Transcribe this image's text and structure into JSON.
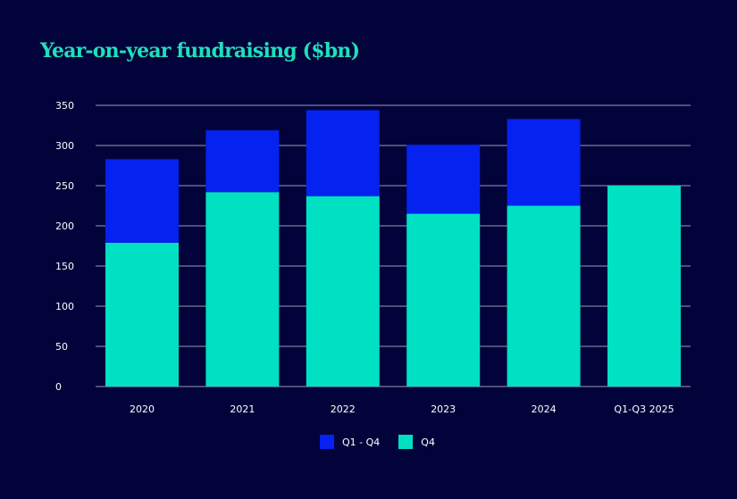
{
  "chart_data": {
    "type": "bar",
    "stacked": true,
    "title": "Year-on-year fundraising ($bn)",
    "xlabel": "",
    "ylabel": "",
    "categories": [
      "2020",
      "2021",
      "2022",
      "2023",
      "2024",
      "Q1-Q3 2025"
    ],
    "ylim": [
      0,
      350
    ],
    "yticks": [
      "0",
      "50",
      "100",
      "150",
      "200",
      "250",
      "300",
      "350"
    ],
    "grid": true,
    "legend_position": "bottom",
    "series": [
      {
        "name": "Q4",
        "color": "#00e0c2",
        "values": [
          179,
          242,
          237,
          215,
          225,
          250
        ]
      },
      {
        "name": "Q1 - Q4",
        "color": "#0522f0",
        "values": [
          104,
          77,
          107,
          86,
          108,
          0
        ]
      }
    ]
  }
}
